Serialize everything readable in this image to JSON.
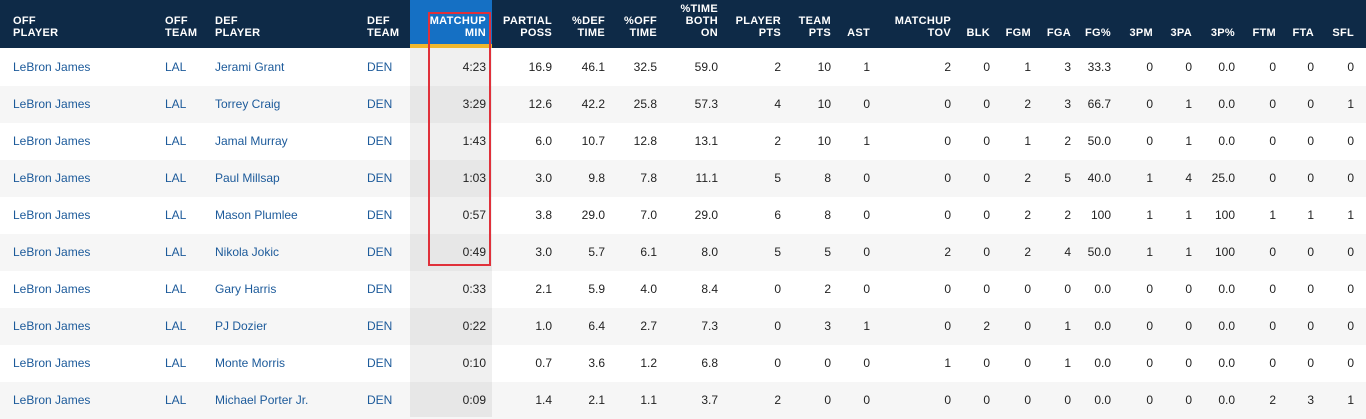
{
  "headers": [
    "OFF\nPLAYER",
    "OFF\nTEAM",
    "DEF\nPLAYER",
    "DEF\nTEAM",
    "MATCHUP\nMIN",
    "PARTIAL\nPOSS",
    "%DEF\nTIME",
    "%OFF\nTIME",
    "%TIME\nBOTH\nON",
    "PLAYER\nPTS",
    "TEAM\nPTS",
    "AST",
    "MATCHUP\nTOV",
    "BLK",
    "FGM",
    "FGA",
    "FG%",
    "3PM",
    "3PA",
    "3P%",
    "FTM",
    "FTA",
    "SFL"
  ],
  "sorted_column": "MATCHUP MIN",
  "rows": [
    [
      "LeBron James",
      "LAL",
      "Jerami Grant",
      "DEN",
      "4:23",
      "16.9",
      "46.1",
      "32.5",
      "59.0",
      "2",
      "10",
      "1",
      "2",
      "0",
      "1",
      "3",
      "33.3",
      "0",
      "0",
      "0.0",
      "0",
      "0",
      "0"
    ],
    [
      "LeBron James",
      "LAL",
      "Torrey Craig",
      "DEN",
      "3:29",
      "12.6",
      "42.2",
      "25.8",
      "57.3",
      "4",
      "10",
      "0",
      "0",
      "0",
      "2",
      "3",
      "66.7",
      "0",
      "1",
      "0.0",
      "0",
      "0",
      "1"
    ],
    [
      "LeBron James",
      "LAL",
      "Jamal Murray",
      "DEN",
      "1:43",
      "6.0",
      "10.7",
      "12.8",
      "13.1",
      "2",
      "10",
      "1",
      "0",
      "0",
      "1",
      "2",
      "50.0",
      "0",
      "1",
      "0.0",
      "0",
      "0",
      "0"
    ],
    [
      "LeBron James",
      "LAL",
      "Paul Millsap",
      "DEN",
      "1:03",
      "3.0",
      "9.8",
      "7.8",
      "11.1",
      "5",
      "8",
      "0",
      "0",
      "0",
      "2",
      "5",
      "40.0",
      "1",
      "4",
      "25.0",
      "0",
      "0",
      "0"
    ],
    [
      "LeBron James",
      "LAL",
      "Mason Plumlee",
      "DEN",
      "0:57",
      "3.8",
      "29.0",
      "7.0",
      "29.0",
      "6",
      "8",
      "0",
      "0",
      "0",
      "2",
      "2",
      "100",
      "1",
      "1",
      "100",
      "1",
      "1",
      "1"
    ],
    [
      "LeBron James",
      "LAL",
      "Nikola Jokic",
      "DEN",
      "0:49",
      "3.0",
      "5.7",
      "6.1",
      "8.0",
      "5",
      "5",
      "0",
      "2",
      "0",
      "2",
      "4",
      "50.0",
      "1",
      "1",
      "100",
      "0",
      "0",
      "0"
    ],
    [
      "LeBron James",
      "LAL",
      "Gary Harris",
      "DEN",
      "0:33",
      "2.1",
      "5.9",
      "4.0",
      "8.4",
      "0",
      "2",
      "0",
      "0",
      "0",
      "0",
      "0",
      "0.0",
      "0",
      "0",
      "0.0",
      "0",
      "0",
      "0"
    ],
    [
      "LeBron James",
      "LAL",
      "PJ Dozier",
      "DEN",
      "0:22",
      "1.0",
      "6.4",
      "2.7",
      "7.3",
      "0",
      "3",
      "1",
      "0",
      "2",
      "0",
      "1",
      "0.0",
      "0",
      "0",
      "0.0",
      "0",
      "0",
      "0"
    ],
    [
      "LeBron James",
      "LAL",
      "Monte Morris",
      "DEN",
      "0:10",
      "0.7",
      "3.6",
      "1.2",
      "6.8",
      "0",
      "0",
      "0",
      "1",
      "0",
      "0",
      "1",
      "0.0",
      "0",
      "0",
      "0.0",
      "0",
      "0",
      "0"
    ],
    [
      "LeBron James",
      "LAL",
      "Michael Porter Jr.",
      "DEN",
      "0:09",
      "1.4",
      "2.1",
      "1.1",
      "3.7",
      "2",
      "0",
      "0",
      "0",
      "0",
      "0",
      "0",
      "0.0",
      "0",
      "0",
      "0.0",
      "2",
      "3",
      "1"
    ]
  ],
  "colors": {
    "header_bg": "#0e2a47",
    "sorted_header_bg": "#1570c4",
    "sort_indicator": "#f0b72d",
    "link_text": "#1c5a9a",
    "annotation_box": "#e0303a"
  }
}
